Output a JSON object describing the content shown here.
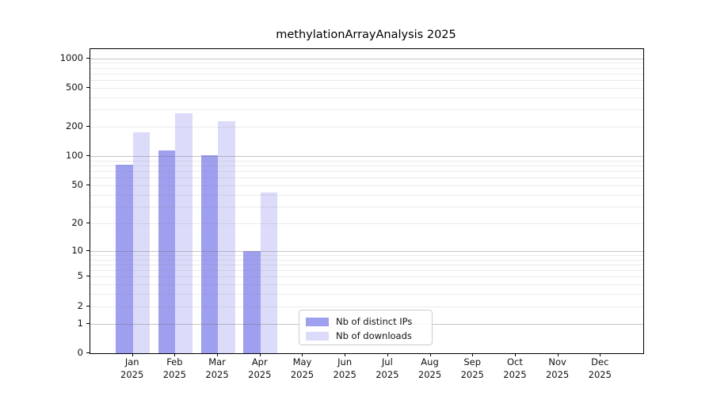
{
  "chart_data": {
    "type": "bar",
    "title": "methylationArrayAnalysis 2025",
    "x_months": [
      "Jan",
      "Feb",
      "Mar",
      "Apr",
      "May",
      "Jun",
      "Jul",
      "Aug",
      "Sep",
      "Oct",
      "Nov",
      "Dec"
    ],
    "x_year": "2025",
    "series": [
      {
        "name": "Nb of distinct IPs",
        "color": "#9f9ff0",
        "values": [
          81,
          115,
          103,
          10,
          0,
          0,
          0,
          0,
          0,
          0,
          0,
          0
        ]
      },
      {
        "name": "Nb of downloads",
        "color": "#dcdcfa",
        "values": [
          177,
          275,
          229,
          42,
          0,
          0,
          0,
          0,
          0,
          0,
          0,
          0
        ]
      }
    ],
    "yscale": "log1p",
    "yticks": [
      1000,
      500,
      200,
      100,
      50,
      20,
      10,
      5,
      2,
      1,
      0
    ],
    "ylim_log1p_max": 3.094,
    "grid": "horizontal-major-and-minor",
    "legend_position": "lower center"
  },
  "colors": {
    "grid_major": "rgba(110,110,110,0.40)",
    "grid_minor": "rgba(130,130,130,0.16)",
    "axis": "#000000",
    "text": "#111111"
  }
}
